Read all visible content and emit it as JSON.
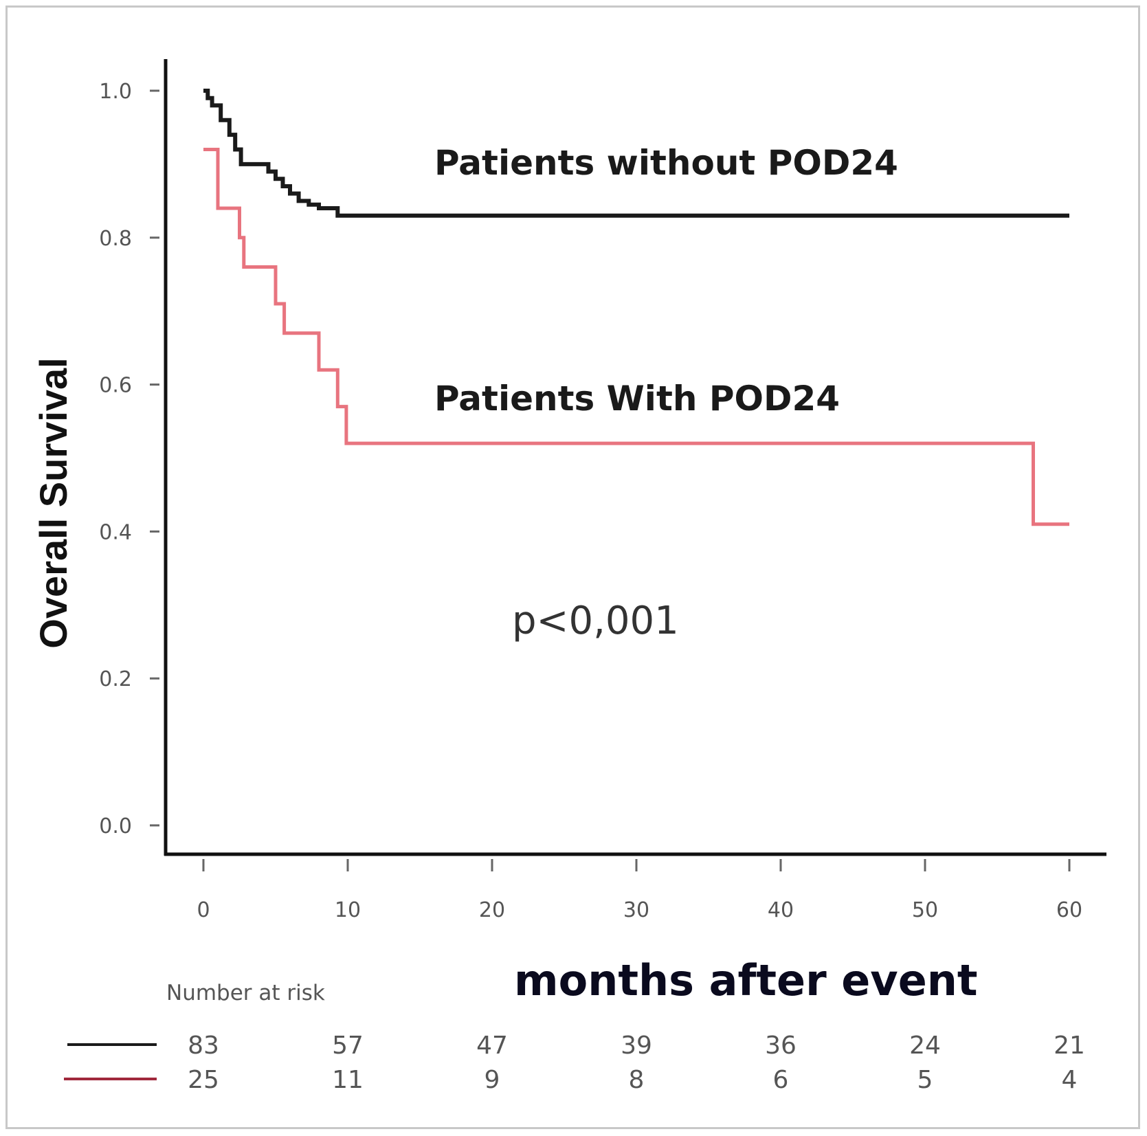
{
  "chart_data": {
    "type": "line",
    "subtype": "kaplan-meier step",
    "ylabel": "Overall Survival",
    "xlabel": "months after event",
    "xlim": [
      0,
      60
    ],
    "ylim": [
      0,
      1
    ],
    "xticks": [
      0,
      10,
      20,
      30,
      40,
      50,
      60
    ],
    "xtick_labels": [
      "0",
      "10",
      "20",
      "30",
      "40",
      "50",
      "60"
    ],
    "yticks": [
      0,
      0.2,
      0.4,
      0.6,
      0.8,
      1.0
    ],
    "ytick_labels": [
      "0.0",
      "0.2",
      "0.4",
      "0.6",
      "0.8",
      "1.0"
    ],
    "grid": false,
    "series": [
      {
        "name": "Patients without POD24",
        "color": "#1a1a1a",
        "x": [
          0,
          0.3,
          0.6,
          1.2,
          1.8,
          2.2,
          2.6,
          4.5,
          5.0,
          5.5,
          6.0,
          6.6,
          7.3,
          8.0,
          9.3,
          60
        ],
        "y": [
          1.0,
          0.99,
          0.98,
          0.96,
          0.94,
          0.92,
          0.9,
          0.89,
          0.88,
          0.87,
          0.86,
          0.85,
          0.845,
          0.84,
          0.83,
          0.83
        ]
      },
      {
        "name": "Patients With POD24",
        "color": "#e8747f",
        "x": [
          0,
          1.0,
          2.5,
          2.8,
          5.0,
          5.6,
          8.0,
          9.3,
          9.9,
          57.5,
          60
        ],
        "y": [
          0.92,
          0.84,
          0.8,
          0.76,
          0.71,
          0.67,
          0.62,
          0.57,
          0.52,
          0.41,
          0.41
        ]
      }
    ],
    "annotations": [
      {
        "text": "Patients without POD24",
        "x": 16,
        "y": 0.9
      },
      {
        "text": "Patients With POD24",
        "x": 16,
        "y": 0.58
      },
      {
        "text": "p<0,001",
        "x": 21.5,
        "y": 0.28
      }
    ],
    "risk_table": {
      "title": "Number at risk",
      "rows": [
        {
          "color": "#1a1a1a",
          "values": [
            "83",
            "57",
            "47",
            "39",
            "36",
            "24",
            "21"
          ]
        },
        {
          "color": "#a0283c",
          "values": [
            "25",
            "11",
            "9",
            "8",
            "6",
            "5",
            "4"
          ]
        }
      ]
    }
  }
}
